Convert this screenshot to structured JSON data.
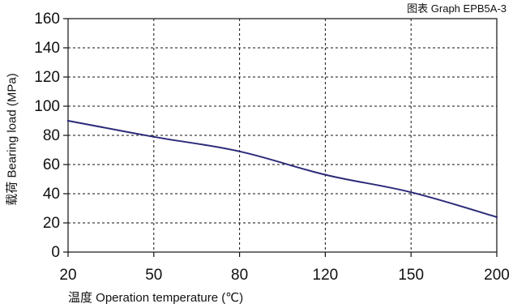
{
  "chart_data": {
    "type": "line",
    "title": "图表 Graph EPB5A-3",
    "xlabel": "温度 Operation temperature (℃)",
    "ylabel": "载荷 Bearing load (MPa)",
    "x_tick_labels": [
      "20",
      "50",
      "80",
      "120",
      "150",
      "200"
    ],
    "y_tick_labels": [
      "0",
      "20",
      "40",
      "60",
      "80",
      "100",
      "120",
      "140",
      "160"
    ],
    "ylim": [
      0,
      160
    ],
    "y_step": 20,
    "grid": true,
    "series": [
      {
        "color": "#2b2b7a",
        "x": [
          "20",
          "50",
          "80",
          "120",
          "150",
          "200"
        ],
        "y": [
          90,
          79,
          69,
          53,
          41,
          24
        ]
      }
    ]
  }
}
